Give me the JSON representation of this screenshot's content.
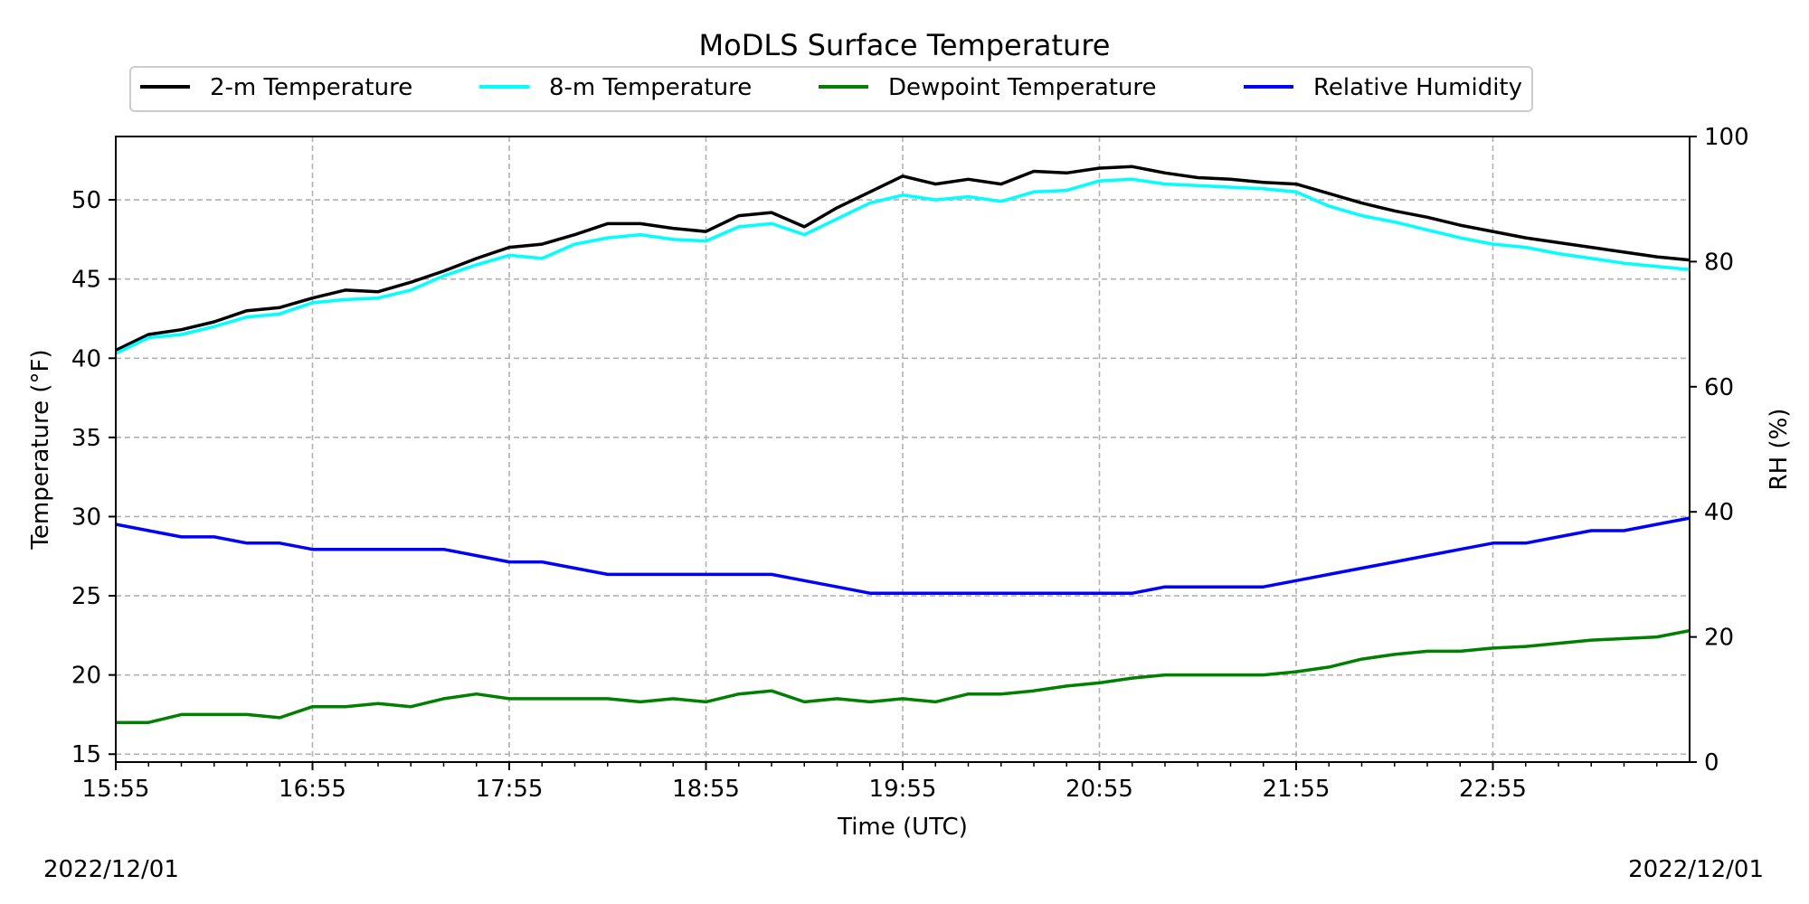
{
  "chart_data": {
    "type": "line",
    "title": "MoDLS Surface Temperature",
    "xlabel": "Time (UTC)",
    "ylabel": "Temperature (°F)",
    "y2label": "RH (%)",
    "date_left": "2022/12/01",
    "date_right": "2022/12/01",
    "x_ticks": [
      "15:55",
      "16:55",
      "17:55",
      "18:55",
      "19:55",
      "20:55",
      "21:55",
      "22:55"
    ],
    "x_range": [
      "15:55",
      "23:55"
    ],
    "ylim": [
      14.5,
      54
    ],
    "y_ticks": [
      15,
      20,
      25,
      30,
      35,
      40,
      45,
      50
    ],
    "y2lim": [
      0,
      100
    ],
    "y2_ticks": [
      0,
      20,
      40,
      60,
      80,
      100
    ],
    "grid": true,
    "legend_position": "top",
    "series": [
      {
        "name": "2-m Temperature",
        "axis": "left",
        "color": "#000000",
        "x": [
          "15:55",
          "16:05",
          "16:15",
          "16:25",
          "16:35",
          "16:45",
          "16:55",
          "17:05",
          "17:15",
          "17:25",
          "17:35",
          "17:45",
          "17:55",
          "18:05",
          "18:15",
          "18:25",
          "18:35",
          "18:45",
          "18:55",
          "19:05",
          "19:15",
          "19:25",
          "19:35",
          "19:45",
          "19:55",
          "20:05",
          "20:15",
          "20:25",
          "20:35",
          "20:45",
          "20:55",
          "21:05",
          "21:15",
          "21:25",
          "21:35",
          "21:45",
          "21:55",
          "22:05",
          "22:15",
          "22:25",
          "22:35",
          "22:45",
          "22:55",
          "23:05",
          "23:15",
          "23:25",
          "23:35",
          "23:45",
          "23:55"
        ],
        "values": [
          40.5,
          41.5,
          41.8,
          42.3,
          43.0,
          43.2,
          43.8,
          44.3,
          44.2,
          44.8,
          45.5,
          46.3,
          47.0,
          47.2,
          47.8,
          48.5,
          48.5,
          48.2,
          48.0,
          49.0,
          49.2,
          48.3,
          49.5,
          50.5,
          51.5,
          51.0,
          51.3,
          51.0,
          51.8,
          51.7,
          52.0,
          52.1,
          51.7,
          51.4,
          51.3,
          51.1,
          51.0,
          50.4,
          49.8,
          49.3,
          48.9,
          48.4,
          48.0,
          47.6,
          47.3,
          47.0,
          46.7,
          46.4,
          46.2
        ]
      },
      {
        "name": "8-m Temperature",
        "axis": "left",
        "color": "#00ffff",
        "x": [
          "15:55",
          "16:05",
          "16:15",
          "16:25",
          "16:35",
          "16:45",
          "16:55",
          "17:05",
          "17:15",
          "17:25",
          "17:35",
          "17:45",
          "17:55",
          "18:05",
          "18:15",
          "18:25",
          "18:35",
          "18:45",
          "18:55",
          "19:05",
          "19:15",
          "19:25",
          "19:35",
          "19:45",
          "19:55",
          "20:05",
          "20:15",
          "20:25",
          "20:35",
          "20:45",
          "20:55",
          "21:05",
          "21:15",
          "21:25",
          "21:35",
          "21:45",
          "21:55",
          "22:05",
          "22:15",
          "22:25",
          "22:35",
          "22:45",
          "22:55",
          "23:05",
          "23:15",
          "23:25",
          "23:35",
          "23:45",
          "23:55"
        ],
        "values": [
          40.3,
          41.3,
          41.5,
          42.0,
          42.6,
          42.8,
          43.5,
          43.7,
          43.8,
          44.3,
          45.2,
          45.9,
          46.5,
          46.3,
          47.2,
          47.6,
          47.8,
          47.5,
          47.4,
          48.3,
          48.5,
          47.8,
          48.8,
          49.8,
          50.3,
          50.0,
          50.2,
          49.9,
          50.5,
          50.6,
          51.2,
          51.3,
          51.0,
          50.9,
          50.8,
          50.7,
          50.5,
          49.6,
          49.0,
          48.6,
          48.1,
          47.6,
          47.2,
          47.0,
          46.6,
          46.3,
          46.0,
          45.8,
          45.6
        ]
      },
      {
        "name": "Dewpoint Temperature",
        "axis": "left",
        "color": "#008000",
        "x": [
          "15:55",
          "16:05",
          "16:15",
          "16:25",
          "16:35",
          "16:45",
          "16:55",
          "17:05",
          "17:15",
          "17:25",
          "17:35",
          "17:45",
          "17:55",
          "18:05",
          "18:15",
          "18:25",
          "18:35",
          "18:45",
          "18:55",
          "19:05",
          "19:15",
          "19:25",
          "19:35",
          "19:45",
          "19:55",
          "20:05",
          "20:15",
          "20:25",
          "20:35",
          "20:45",
          "20:55",
          "21:05",
          "21:15",
          "21:25",
          "21:35",
          "21:45",
          "21:55",
          "22:05",
          "22:15",
          "22:25",
          "22:35",
          "22:45",
          "22:55",
          "23:05",
          "23:15",
          "23:25",
          "23:35",
          "23:45",
          "23:55"
        ],
        "values": [
          17.0,
          17.0,
          17.5,
          17.5,
          17.5,
          17.3,
          18.0,
          18.0,
          18.2,
          18.0,
          18.5,
          18.8,
          18.5,
          18.5,
          18.5,
          18.5,
          18.3,
          18.5,
          18.3,
          18.8,
          19.0,
          18.3,
          18.5,
          18.3,
          18.5,
          18.3,
          18.8,
          18.8,
          19.0,
          19.3,
          19.5,
          19.8,
          20.0,
          20.0,
          20.0,
          20.0,
          20.2,
          20.5,
          21.0,
          21.3,
          21.5,
          21.5,
          21.7,
          21.8,
          22.0,
          22.2,
          22.3,
          22.4,
          22.8
        ]
      },
      {
        "name": "Relative Humidity",
        "axis": "right",
        "color": "#0000ff",
        "x": [
          "15:55",
          "16:05",
          "16:15",
          "16:25",
          "16:35",
          "16:45",
          "16:55",
          "17:05",
          "17:15",
          "17:25",
          "17:35",
          "17:45",
          "17:55",
          "18:05",
          "18:15",
          "18:25",
          "18:35",
          "18:45",
          "18:55",
          "19:05",
          "19:15",
          "19:25",
          "19:35",
          "19:45",
          "19:55",
          "20:05",
          "20:15",
          "20:25",
          "20:35",
          "20:45",
          "20:55",
          "21:05",
          "21:15",
          "21:25",
          "21:35",
          "21:45",
          "21:55",
          "22:05",
          "22:15",
          "22:25",
          "22:35",
          "22:45",
          "22:55",
          "23:05",
          "23:15",
          "23:25",
          "23:35",
          "23:45",
          "23:55"
        ],
        "values": [
          38,
          37,
          36,
          36,
          35,
          35,
          34,
          34,
          34,
          34,
          34,
          33,
          32,
          32,
          31,
          30,
          30,
          30,
          30,
          30,
          30,
          29,
          28,
          27,
          27,
          27,
          27,
          27,
          27,
          27,
          27,
          27,
          28,
          28,
          28,
          28,
          29,
          30,
          31,
          32,
          33,
          34,
          35,
          35,
          36,
          37,
          37,
          38,
          39
        ]
      }
    ]
  }
}
